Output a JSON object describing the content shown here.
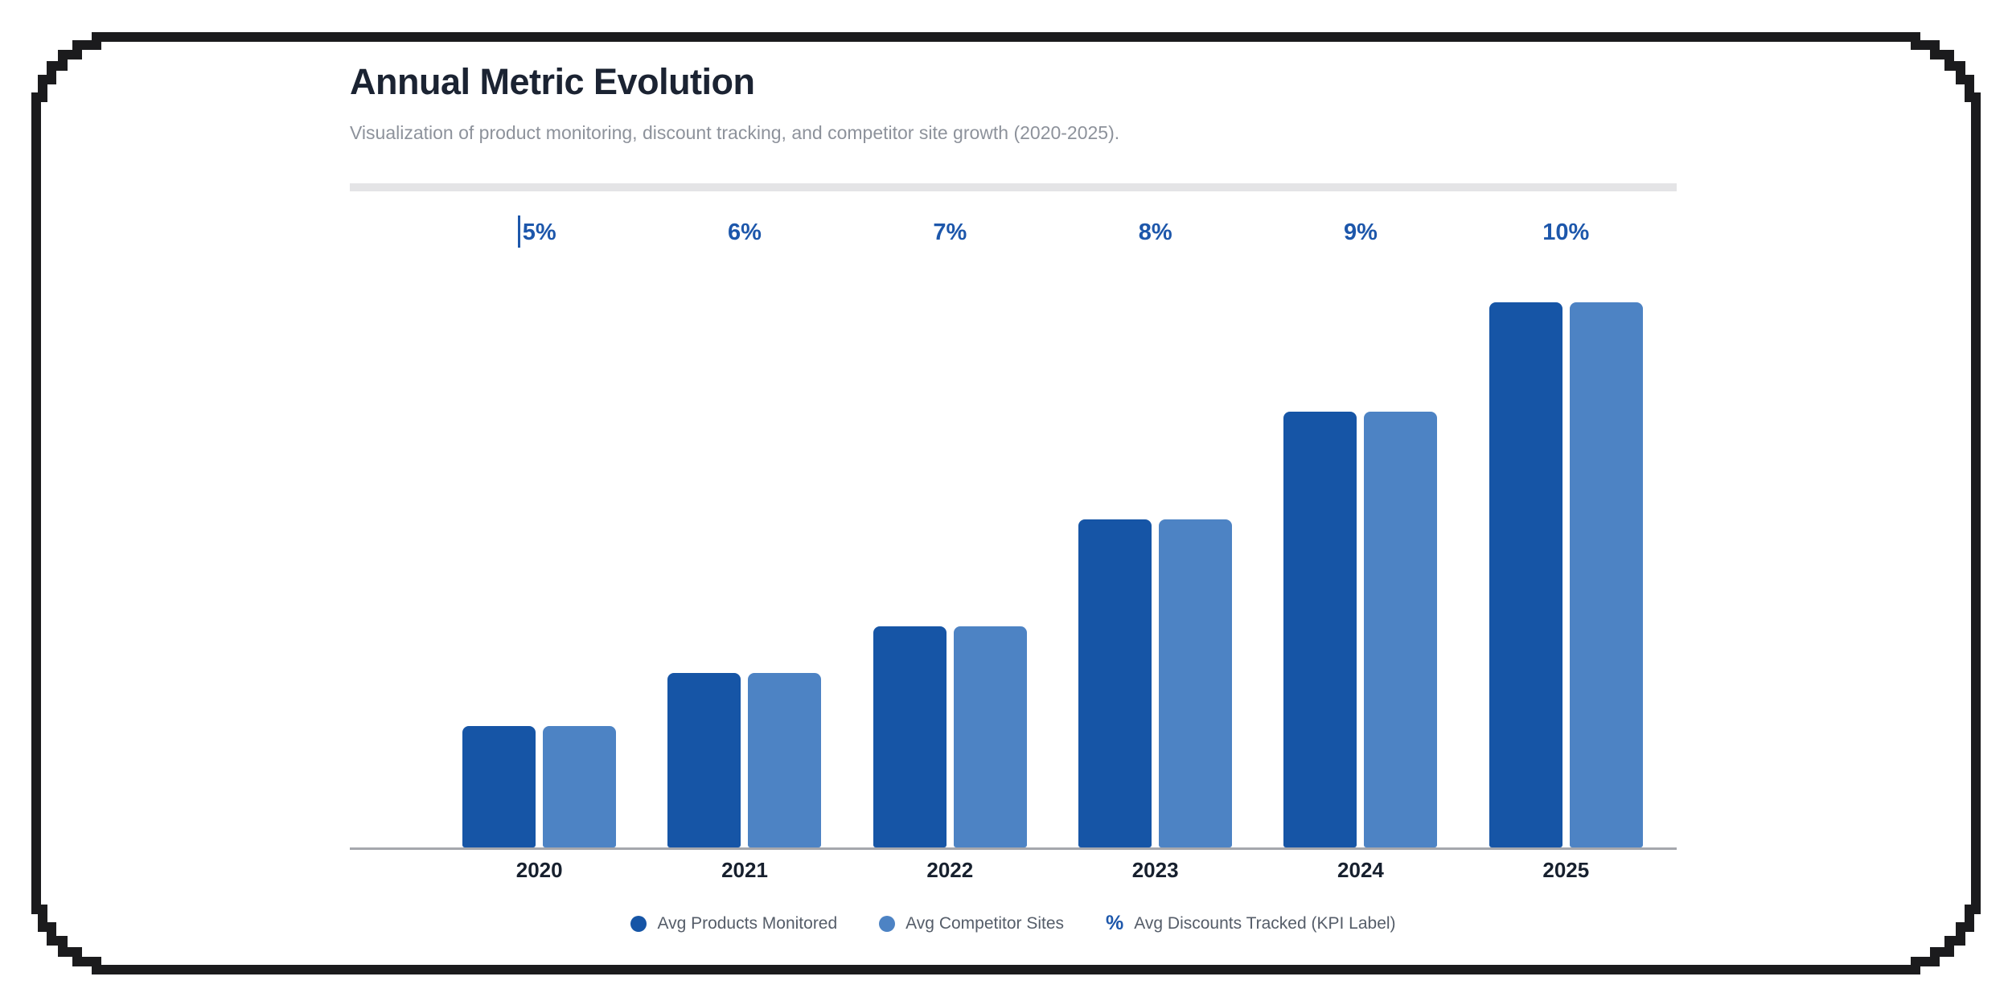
{
  "card": {
    "title": "Annual Metric Evolution",
    "subtitle": "Visualization of product monitoring, discount tracking, and competitor site growth (2020-2025)."
  },
  "chart_data": {
    "type": "bar",
    "title": "Annual Metric Evolution",
    "categories": [
      "2020",
      "2021",
      "2022",
      "2023",
      "2024",
      "2025"
    ],
    "series": [
      {
        "name": "Avg Products Monitored",
        "color": "#1655a6",
        "relative_heights_pct": [
          22.3,
          32.0,
          40.5,
          60.2,
          79.9,
          100
        ]
      },
      {
        "name": "Avg Competitor Sites",
        "color": "#4d83c4",
        "relative_heights_pct": [
          22.3,
          32.0,
          40.5,
          60.2,
          79.9,
          100
        ]
      }
    ],
    "kpi_series": {
      "name": "Avg Discounts Tracked (KPI Label)",
      "symbol": "%",
      "unit": "%",
      "values": [
        5,
        6,
        7,
        8,
        9,
        10
      ],
      "labels": [
        "5%",
        "6%",
        "7%",
        "8%",
        "9%",
        "10%"
      ],
      "color": "#1d57ab"
    },
    "xlabel": "",
    "ylabel": "",
    "y_axis_visible": false,
    "grid": false,
    "legend_position": "bottom"
  },
  "colors": {
    "frame": "#1b1b1d",
    "title_text": "#1b2332",
    "subtitle_text": "#8d929b",
    "divider": "#e4e4e6",
    "axis_line": "#a5a7ad",
    "year_text": "#17202e",
    "legend_text": "#555d69"
  }
}
